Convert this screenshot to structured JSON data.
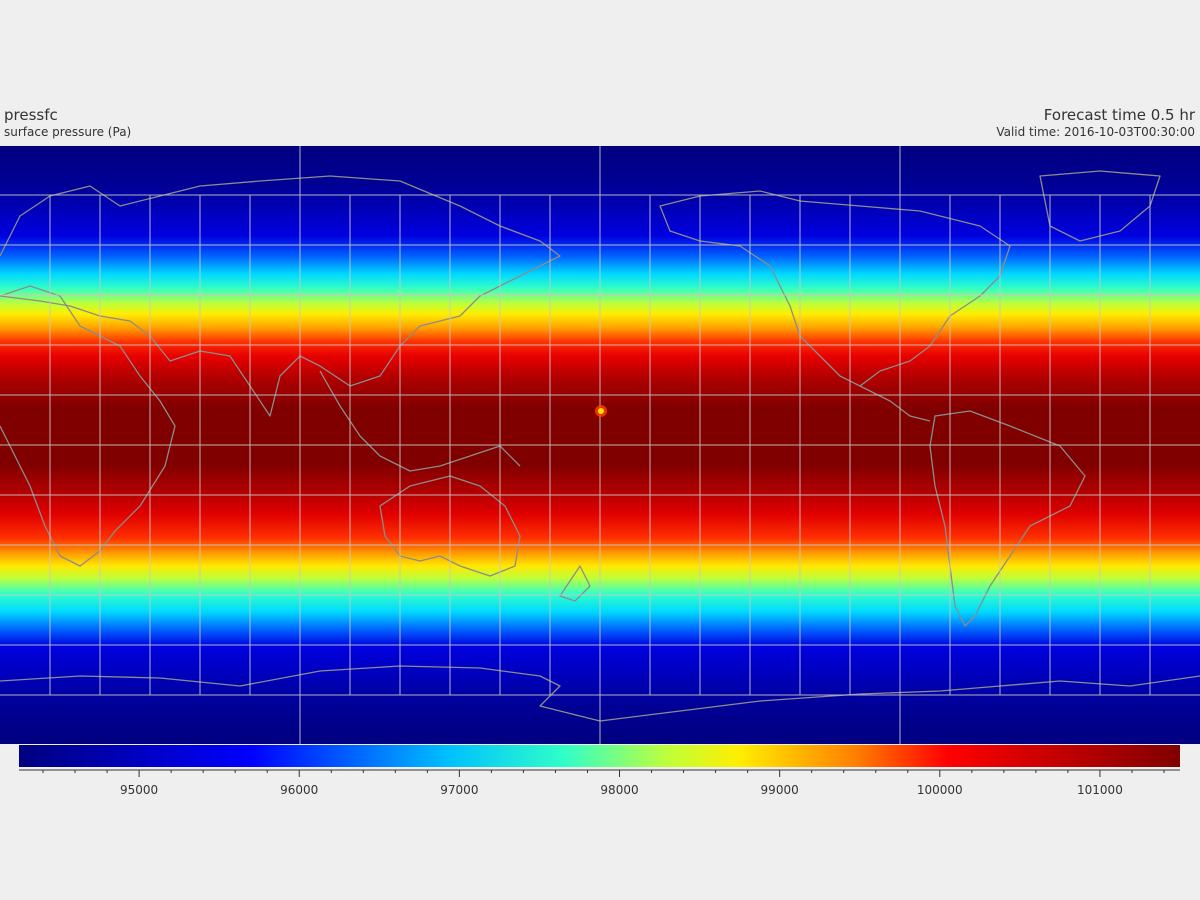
{
  "header": {
    "variable_name": "pressfc",
    "variable_desc": "surface pressure (Pa)",
    "forecast_time": "Forecast time 0.5 hr",
    "valid_time": "Valid time: 2016-10-03T00:30:00"
  },
  "map": {
    "projection": "plate-carree",
    "center_longitude": 180,
    "land_outline_color": "#8c8c8c",
    "gridline_color": "#c8c8c8"
  },
  "colorbar": {
    "colormap": "jet",
    "min": 94250,
    "max": 101500,
    "major_ticks": [
      {
        "value": 95000,
        "label": "95000"
      },
      {
        "value": 96000,
        "label": "96000"
      },
      {
        "value": 97000,
        "label": "97000"
      },
      {
        "value": 98000,
        "label": "98000"
      },
      {
        "value": 99000,
        "label": "99000"
      },
      {
        "value": 100000,
        "label": "100000"
      },
      {
        "value": 101000,
        "label": "101000"
      }
    ]
  }
}
